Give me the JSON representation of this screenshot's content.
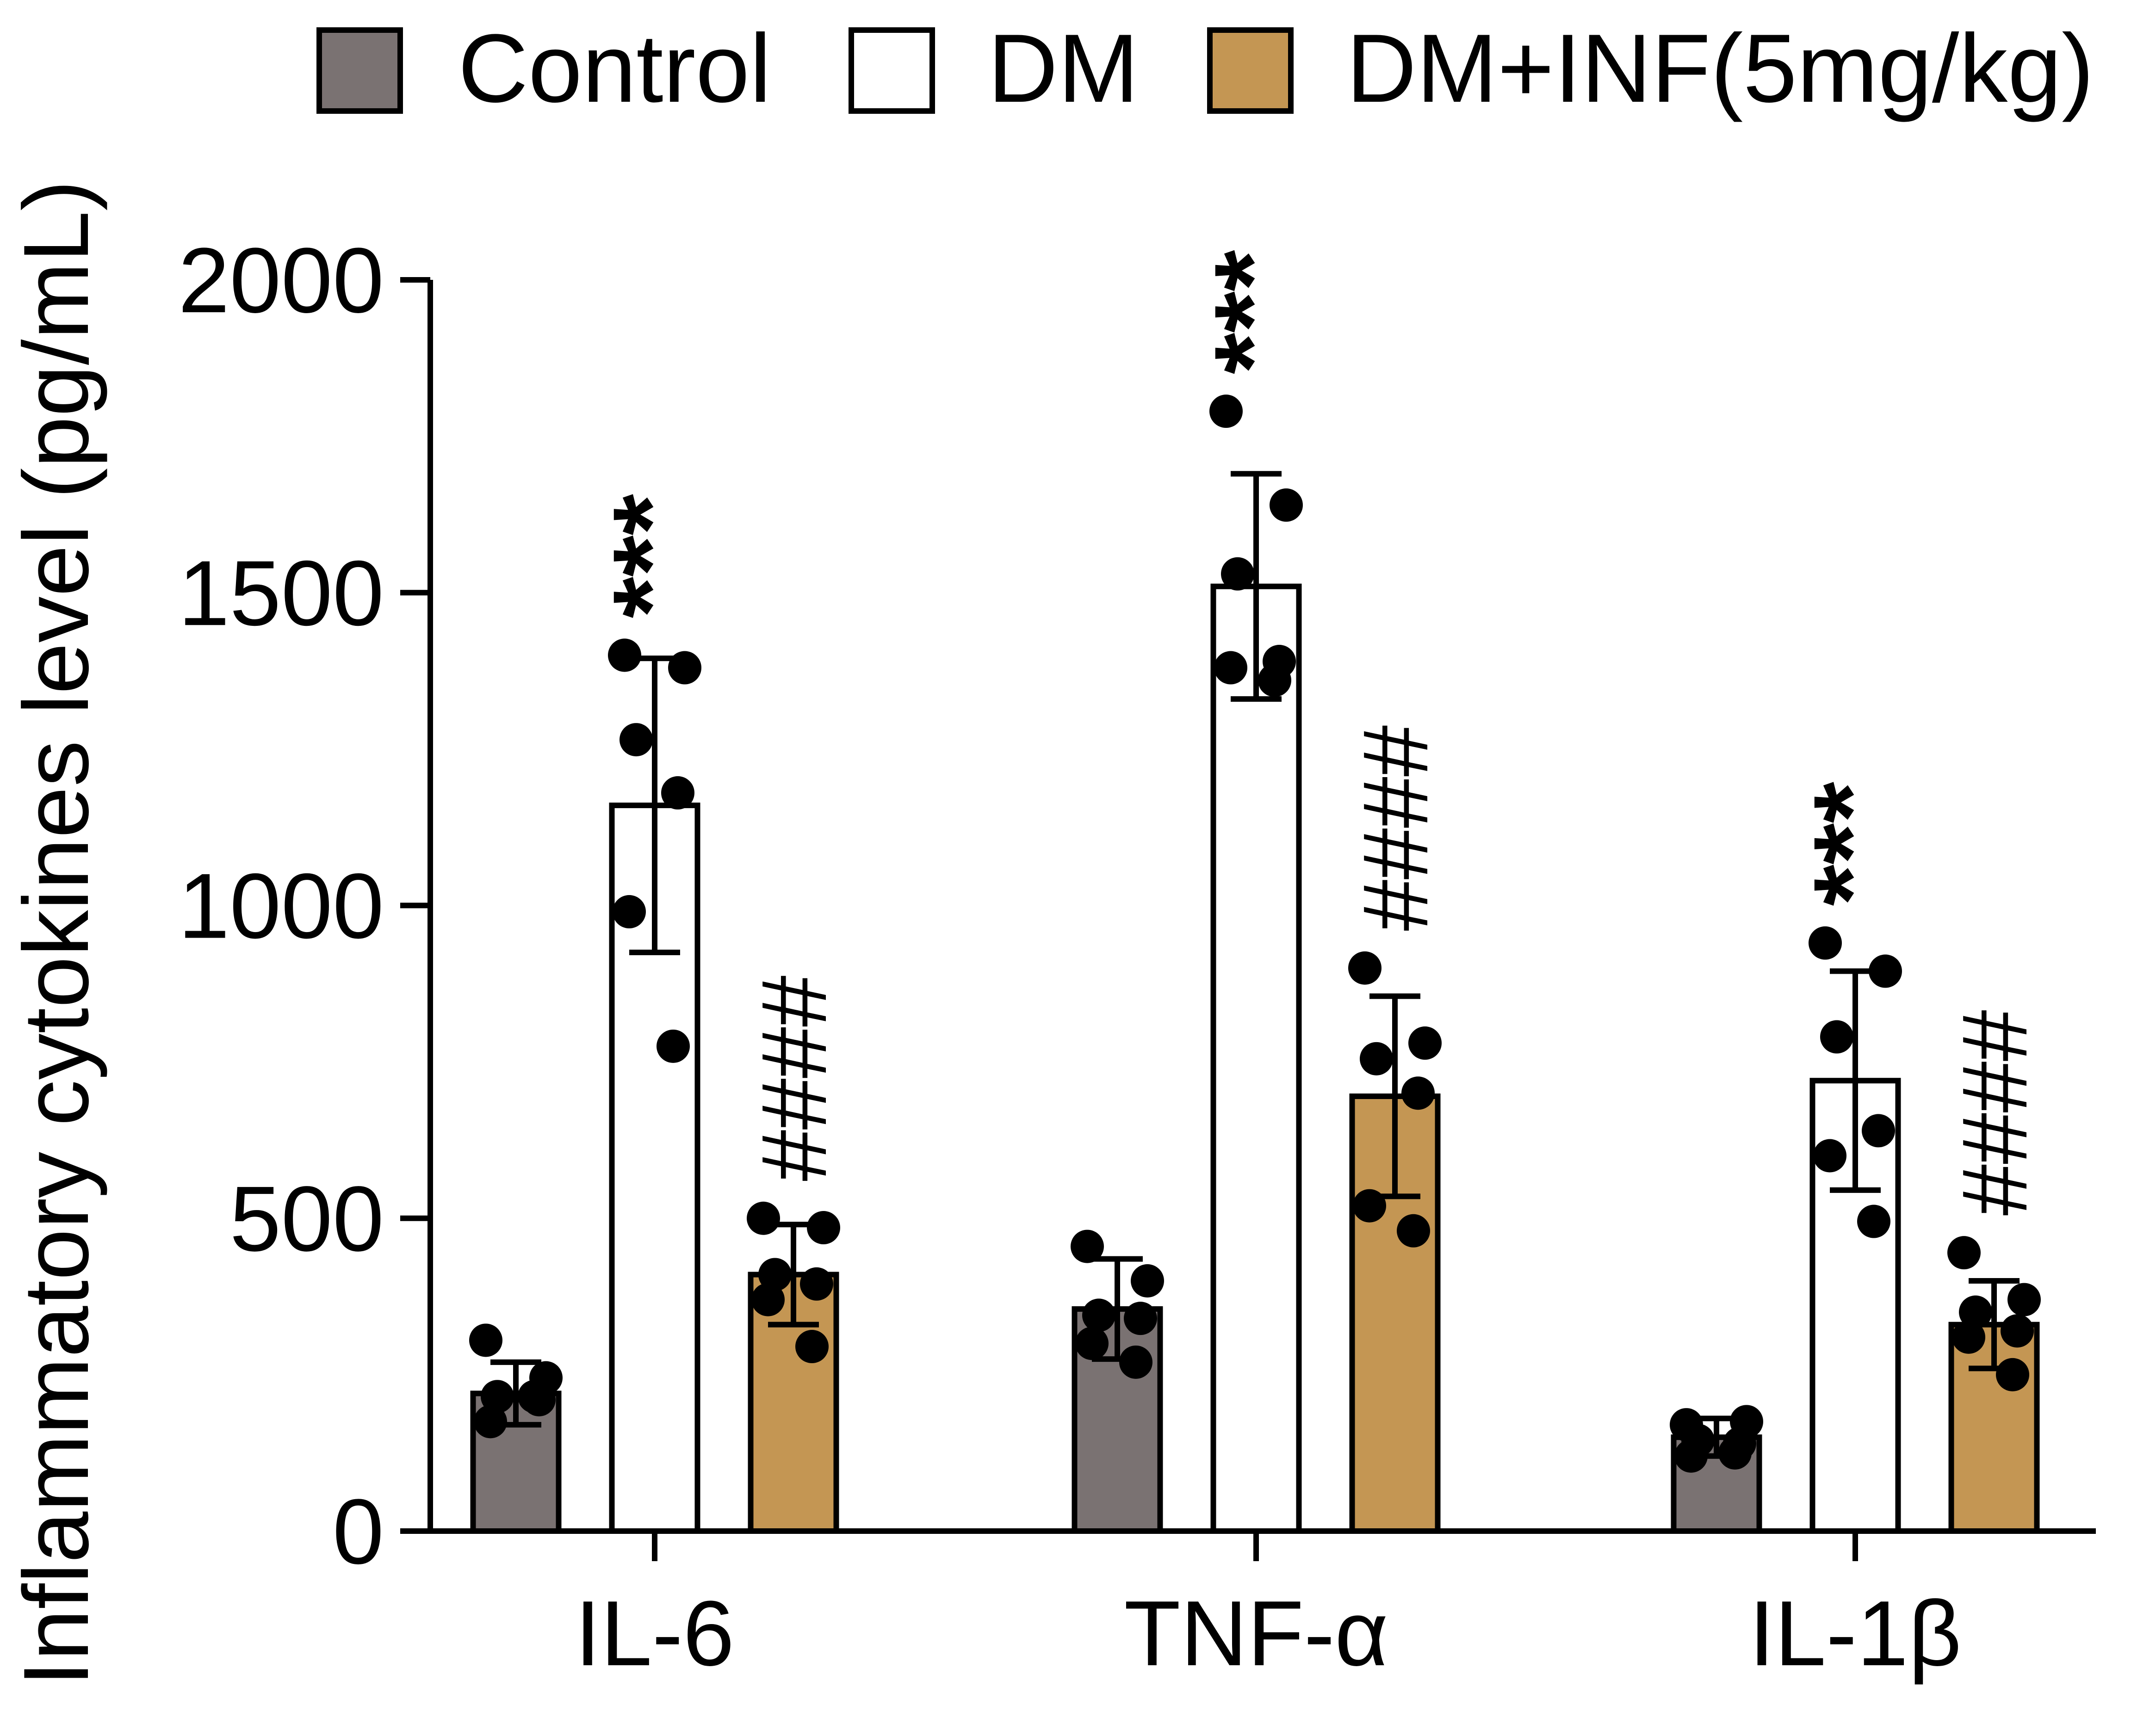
{
  "colors": {
    "control": "#7a7272",
    "dm": "#ffffff",
    "dm_inf": "#c49653",
    "stroke": "#000000"
  },
  "chart_data": {
    "type": "bar",
    "categories": [
      "IL-6",
      "TNF-α",
      "IL-1β"
    ],
    "series": [
      {
        "name": "Control",
        "color": "#7a7272",
        "values": [
          220,
          355,
          150
        ],
        "error": [
          50,
          80,
          30
        ],
        "points": [
          [
            305,
            245,
            215,
            210,
            175,
            215
          ],
          [
            455,
            400,
            345,
            340,
            300,
            270
          ],
          [
            170,
            175,
            145,
            140,
            120,
            125
          ]
        ]
      },
      {
        "name": "DM",
        "color": "#ffffff",
        "values": [
          1160,
          1510,
          720
        ],
        "error": [
          235,
          180,
          175
        ],
        "points": [
          [
            1400,
            1380,
            1265,
            1180,
            990,
            775
          ],
          [
            1790,
            1640,
            1530,
            1390,
            1380,
            1360
          ],
          [
            940,
            895,
            790,
            640,
            600,
            495
          ]
        ]
      },
      {
        "name": "DM+INF(5mg/kg)",
        "color": "#c49653",
        "values": [
          410,
          695,
          330
        ],
        "error": [
          80,
          160,
          70
        ],
        "points": [
          [
            500,
            485,
            410,
            395,
            370,
            295
          ],
          [
            900,
            780,
            755,
            700,
            520,
            480
          ],
          [
            445,
            370,
            350,
            320,
            310,
            250
          ]
        ]
      }
    ],
    "annotations": {
      "dm": [
        "***",
        "***",
        "***"
      ],
      "dm_inf": [
        "####",
        "####",
        "####"
      ]
    },
    "title": "",
    "xlabel": "",
    "ylabel": "Inflammatory cytokines level (pg/mL)",
    "ylim": [
      0,
      2000
    ],
    "yticks": [
      0,
      500,
      1000,
      1500,
      2000
    ],
    "grid": false,
    "legend": "top"
  }
}
